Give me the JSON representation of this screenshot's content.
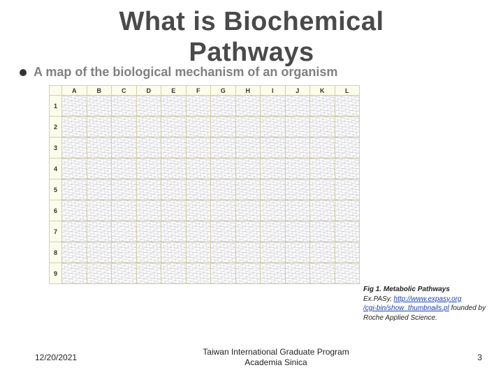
{
  "title_line1": "What is Biochemical",
  "title_line2": "Pathways",
  "subtitle": "A map of the biological mechanism of an organism",
  "chart": {
    "columns": [
      "A",
      "B",
      "C",
      "D",
      "E",
      "F",
      "G",
      "H",
      "I",
      "J",
      "K",
      "L"
    ],
    "rows": [
      "1",
      "2",
      "3",
      "4",
      "5",
      "6",
      "7",
      "8",
      "9"
    ],
    "border_color": "#d4cfa8",
    "header_bg": "#fcfceb",
    "cell_bg": "#ffffff"
  },
  "caption": {
    "fig_label": "Fig 1. Metabolic Pathways",
    "source_prefix": "Ex.PASy, ",
    "link1": "http://www.expasy.org",
    "link2": "/cgi-bin/show_thumbnails.pl",
    "suffix": " founded by Roche Applied Science."
  },
  "footer": {
    "date": "12/20/2021",
    "center_line1": "Taiwan International Graduate Program",
    "center_line2": "Academia Sinica",
    "page": "3"
  },
  "colors": {
    "title": "#4a4a4a",
    "subtitle": "#808080",
    "link": "#1a3fb0",
    "bullet": "#333333"
  }
}
